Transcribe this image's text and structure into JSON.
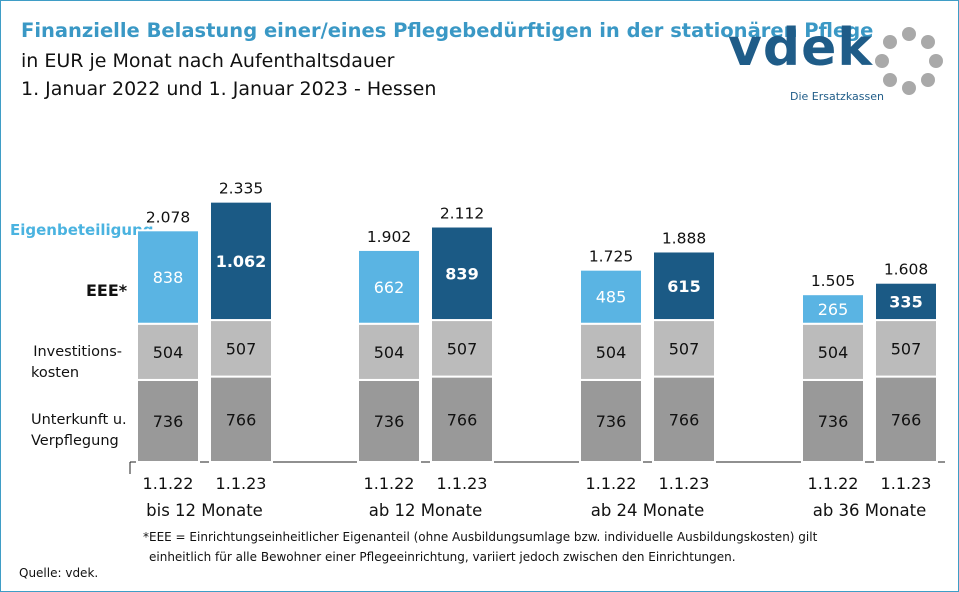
{
  "header": {
    "title": "Finanzielle Belastung einer/eines Pflegebedürftigen in der stationären Pflege",
    "subtitle": "in EUR je Monat nach Aufenthaltsdauer",
    "dates": "1. Januar 2022 und 1. Januar 2023 - Hessen"
  },
  "logo": {
    "wordmark": "vdek",
    "tagline": "Die Ersatzkassen",
    "color": "#1f5c88"
  },
  "side_labels": {
    "eigen": "Eigenbeteiligung",
    "eee": "EEE*",
    "inv_1": "Investitions-",
    "inv_2": "kosten",
    "unt_1": "Unterkunft u.",
    "unt_2": "Verpflegung"
  },
  "chart_data": {
    "type": "bar",
    "stacked": true,
    "groups": [
      {
        "label": "bis 12 Monate",
        "bars": [
          {
            "date": "1.1.22",
            "unterkunft": 736,
            "investition": 504,
            "eee": 838,
            "total": "2.078"
          },
          {
            "date": "1.1.23",
            "unterkunft": 766,
            "investition": 507,
            "eee": 1062,
            "eee_label": "1.062",
            "total": "2.335"
          }
        ]
      },
      {
        "label": "ab 12 Monate",
        "bars": [
          {
            "date": "1.1.22",
            "unterkunft": 736,
            "investition": 504,
            "eee": 662,
            "total": "1.902"
          },
          {
            "date": "1.1.23",
            "unterkunft": 766,
            "investition": 507,
            "eee": 839,
            "total": "2.112"
          }
        ]
      },
      {
        "label": "ab 24 Monate",
        "bars": [
          {
            "date": "1.1.22",
            "unterkunft": 736,
            "investition": 504,
            "eee": 485,
            "total": "1.725"
          },
          {
            "date": "1.1.23",
            "unterkunft": 766,
            "investition": 507,
            "eee": 615,
            "total": "1.888"
          }
        ]
      },
      {
        "label": "ab 36 Monate",
        "bars": [
          {
            "date": "1.1.22",
            "unterkunft": 736,
            "investition": 504,
            "eee": 265,
            "total": "1.505"
          },
          {
            "date": "1.1.23",
            "unterkunft": 766,
            "investition": 507,
            "eee": 335,
            "total": "1.608"
          }
        ]
      }
    ],
    "series": [
      "Unterkunft u. Verpflegung",
      "Investitionskosten",
      "EEE*"
    ],
    "colors": {
      "unterkunft": "#999999",
      "investition": "#bbbbbb",
      "eee_2022": "#5ab4e3",
      "eee_2023": "#1b5a85"
    }
  },
  "footnote": {
    "line1": "*EEE = Einrichtungseinheitlicher  Eigenanteil (ohne Ausbildungsumlage  bzw. individuelle Ausbildungskosten) gilt",
    "line2": "einheitlich für alle Bewohner einer Pflegeeinrichtung,  variiert jedoch zwischen den Einrichtungen."
  },
  "source": "Quelle: vdek."
}
